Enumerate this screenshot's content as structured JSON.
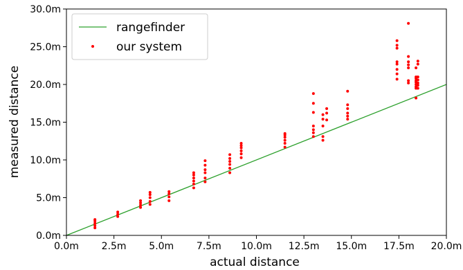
{
  "chart_data": {
    "type": "scatter",
    "title": "",
    "xlabel": "actual distance",
    "ylabel": "measured distance",
    "xlim": [
      0,
      20
    ],
    "ylim": [
      0,
      30
    ],
    "x_ticks": [
      0,
      2.5,
      5,
      7.5,
      10,
      12.5,
      15,
      17.5,
      20
    ],
    "x_tick_labels": [
      "0.0m",
      "2.5m",
      "5.0m",
      "7.5m",
      "10.0m",
      "12.5m",
      "15.0m",
      "17.5m",
      "20.0m"
    ],
    "y_ticks": [
      0,
      5,
      10,
      15,
      20,
      25,
      30
    ],
    "y_tick_labels": [
      "0.0m",
      "5.0m",
      "10.0m",
      "15.0m",
      "20.0m",
      "25.0m",
      "30.0m"
    ],
    "grid": false,
    "legend_position": "top-left",
    "series": [
      {
        "name": "rangefinder",
        "kind": "line",
        "color": "#2ca02c",
        "x": [
          0,
          20
        ],
        "y": [
          0,
          20
        ]
      },
      {
        "name": "our system",
        "kind": "scatter",
        "color": "#ff0000",
        "points": [
          [
            1.5,
            1.0
          ],
          [
            1.5,
            1.3
          ],
          [
            1.5,
            1.6
          ],
          [
            1.5,
            1.9
          ],
          [
            1.5,
            2.1
          ],
          [
            2.7,
            2.5
          ],
          [
            2.7,
            2.8
          ],
          [
            2.7,
            3.1
          ],
          [
            3.9,
            3.7
          ],
          [
            3.9,
            4.0
          ],
          [
            3.9,
            4.3
          ],
          [
            3.9,
            4.6
          ],
          [
            4.4,
            4.1
          ],
          [
            4.4,
            4.5
          ],
          [
            4.4,
            5.0
          ],
          [
            4.4,
            5.4
          ],
          [
            4.4,
            5.7
          ],
          [
            5.4,
            4.6
          ],
          [
            5.4,
            5.1
          ],
          [
            5.4,
            5.5
          ],
          [
            5.4,
            5.8
          ],
          [
            6.7,
            6.3
          ],
          [
            6.7,
            6.8
          ],
          [
            6.7,
            7.2
          ],
          [
            6.7,
            7.6
          ],
          [
            6.7,
            8.0
          ],
          [
            6.7,
            8.3
          ],
          [
            7.3,
            7.1
          ],
          [
            7.3,
            7.6
          ],
          [
            7.3,
            8.3
          ],
          [
            7.3,
            8.7
          ],
          [
            7.3,
            9.3
          ],
          [
            7.3,
            9.9
          ],
          [
            8.6,
            8.3
          ],
          [
            8.6,
            8.9
          ],
          [
            8.6,
            9.4
          ],
          [
            8.6,
            9.8
          ],
          [
            8.6,
            10.2
          ],
          [
            8.6,
            10.7
          ],
          [
            9.2,
            10.3
          ],
          [
            9.2,
            10.8
          ],
          [
            9.2,
            11.2
          ],
          [
            9.2,
            11.6
          ],
          [
            9.2,
            11.9
          ],
          [
            9.2,
            12.2
          ],
          [
            11.5,
            11.7
          ],
          [
            11.5,
            12.2
          ],
          [
            11.5,
            12.6
          ],
          [
            11.5,
            13.0
          ],
          [
            11.5,
            13.3
          ],
          [
            11.5,
            13.5
          ],
          [
            13.0,
            13.1
          ],
          [
            13.0,
            13.6
          ],
          [
            13.0,
            14.0
          ],
          [
            13.0,
            14.5
          ],
          [
            13.0,
            16.3
          ],
          [
            13.0,
            17.5
          ],
          [
            13.0,
            18.8
          ],
          [
            13.5,
            12.6
          ],
          [
            13.5,
            13.1
          ],
          [
            13.5,
            14.5
          ],
          [
            13.5,
            15.4
          ],
          [
            13.5,
            16.0
          ],
          [
            13.7,
            15.3
          ],
          [
            13.7,
            16.2
          ],
          [
            13.7,
            16.8
          ],
          [
            14.8,
            15.4
          ],
          [
            14.8,
            15.8
          ],
          [
            14.8,
            16.2
          ],
          [
            14.8,
            16.8
          ],
          [
            14.8,
            17.3
          ],
          [
            14.8,
            19.1
          ],
          [
            17.4,
            20.7
          ],
          [
            17.4,
            21.4
          ],
          [
            17.4,
            22.0
          ],
          [
            17.4,
            22.7
          ],
          [
            17.4,
            23.0
          ],
          [
            17.4,
            24.8
          ],
          [
            17.4,
            25.2
          ],
          [
            17.4,
            25.8
          ],
          [
            18.0,
            20.2
          ],
          [
            18.0,
            20.5
          ],
          [
            18.0,
            22.2
          ],
          [
            18.0,
            22.6
          ],
          [
            18.0,
            23.0
          ],
          [
            18.0,
            23.7
          ],
          [
            18.0,
            28.1
          ],
          [
            18.4,
            18.2
          ],
          [
            18.4,
            19.5
          ],
          [
            18.4,
            19.7
          ],
          [
            18.4,
            20.0
          ],
          [
            18.4,
            20.3
          ],
          [
            18.4,
            20.5
          ],
          [
            18.4,
            20.8
          ],
          [
            18.4,
            21.0
          ],
          [
            18.4,
            22.2
          ],
          [
            18.5,
            19.5
          ],
          [
            18.5,
            19.9
          ],
          [
            18.5,
            20.2
          ],
          [
            18.5,
            20.6
          ],
          [
            18.5,
            21.0
          ],
          [
            18.5,
            22.7
          ],
          [
            18.5,
            23.1
          ]
        ]
      }
    ]
  }
}
